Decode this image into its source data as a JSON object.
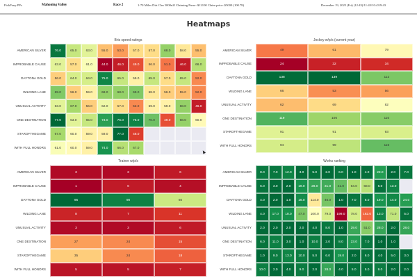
{
  "header": {
    "app_name": "PickPony PPs",
    "track": "Mahoning Valley",
    "race": "Race 2",
    "race_info": "1-70 Miles Dirt Clm 5000n2l Claiming Purse: $12100 Claim price: $5000 (100.78)",
    "date_times": "December 19, 2025 (Fri) (12:43)/11:43/10:43/9:43"
  },
  "page_title": "Heatmaps",
  "chart_data": [
    {
      "id": "speed",
      "type": "heatmap",
      "title": "Bris speed ratings",
      "colormap": "RdYlGn",
      "higher_is_better": true,
      "value_format": "decimal1",
      "rows": [
        "AMERICAN SILVER",
        "IMPROBABLE CAUSE",
        "DAYTONA GOLD",
        "WILDING LANE",
        "UNUSUAL ACTIVITY",
        "ONE DESTINATION",
        "STAROFTHEGAME",
        "WITH FULL HONORS"
      ],
      "columns": 10,
      "values": [
        [
          76,
          65,
          63,
          55,
          53,
          57,
          57,
          68,
          58,
          55
        ],
        [
          63,
          57,
          61,
          44,
          46,
          49,
          56,
          51,
          46,
          66
        ],
        [
          56,
          64,
          64,
          75,
          65,
          59,
          65,
          57,
          65,
          52
        ],
        [
          69,
          56,
          59,
          68,
          68,
          69,
          58,
          56,
          55,
          52
        ],
        [
          63,
          67,
          56,
          62,
          57,
          52,
          59,
          59,
          68,
          46
        ],
        [
          77,
          63,
          65,
          73,
          76,
          75,
          70,
          49,
          68,
          60
        ],
        [
          67,
          60,
          59,
          59,
          77,
          48,
          null,
          null,
          null,
          null
        ],
        [
          61,
          60,
          59,
          74,
          66,
          67,
          null,
          null,
          null,
          null
        ]
      ],
      "vmin": 44,
      "vmax": 77
    },
    {
      "id": "jockey",
      "type": "heatmap",
      "title": "Jockey w/p/s (current year)",
      "colormap": "RdYlGn",
      "higher_is_better": true,
      "value_format": "int",
      "rows": [
        "AMERICAN SILVER",
        "IMPROBABLE CAUSE",
        "DAYTONA GOLD",
        "WILDING LANE",
        "UNUSUAL ACTIVITY",
        "ONE DESTINATION",
        "STAROFTHEGAME",
        "WITH FULL HONORS"
      ],
      "columns": 3,
      "values": [
        [
          49,
          61,
          79
        ],
        [
          24,
          32,
          34
        ],
        [
          138,
          139,
          112
        ],
        [
          66,
          53,
          56
        ],
        [
          62,
          69,
          82
        ],
        [
          119,
          106,
          110
        ],
        [
          91,
          91,
          93
        ],
        [
          94,
          99,
          116
        ]
      ],
      "vmin": 24,
      "vmax": 139
    },
    {
      "id": "trainer",
      "type": "heatmap",
      "title": "Trainer w/p/s",
      "colormap": "RdYlGn",
      "higher_is_better": true,
      "value_format": "int",
      "rows": [
        "AMERICAN SILVER",
        "IMPROBABLE CAUSE",
        "DAYTONA GOLD",
        "WILDING LANE",
        "UNUSUAL ACTIVITY",
        "ONE DESTINATION",
        "STAROFTHEGAME",
        "WITH FULL HONORS"
      ],
      "columns": 3,
      "values": [
        [
          3,
          3,
          6
        ],
        [
          1,
          6,
          4
        ],
        [
          95,
          90,
          60
        ],
        [
          8,
          7,
          11
        ],
        [
          3,
          3,
          6
        ],
        [
          27,
          24,
          15
        ],
        [
          35,
          24,
          18
        ],
        [
          5,
          5,
          7
        ]
      ],
      "vmin": 1,
      "vmax": 95
    },
    {
      "id": "works",
      "type": "heatmap",
      "title": "Works ranking",
      "colormap": "RdYlGn_r",
      "higher_is_better": false,
      "value_format": "decimal1",
      "rows": [
        "AMERICAN SILVER",
        "IMPROBABLE CAUSE",
        "DAYTONA GOLD",
        "WILDING LANE",
        "UNUSUAL ACTIVITY",
        "ONE DESTINATION",
        "STAROFTHEGAME",
        "WITH FULL HONORS"
      ],
      "columns": 12,
      "values": [
        [
          8,
          7,
          12,
          3,
          5,
          2,
          6,
          1,
          4,
          23,
          2,
          7
        ],
        [
          6,
          3,
          2,
          19,
          28,
          31,
          41,
          64,
          68,
          5,
          13,
          null
        ],
        [
          4,
          2,
          1,
          16,
          114,
          46,
          1,
          7,
          8,
          19,
          14,
          24
        ],
        [
          4,
          17,
          18,
          47,
          100,
          79,
          199,
          78,
          162,
          13,
          71,
          5
        ],
        [
          2,
          2,
          2,
          2,
          4,
          8,
          1,
          29,
          51,
          28,
          2,
          28
        ],
        [
          6,
          11,
          3,
          1,
          10,
          2,
          8,
          23,
          7,
          1,
          1,
          null
        ],
        [
          1,
          9,
          13,
          10,
          5,
          6,
          19,
          2,
          6,
          4,
          5,
          3
        ],
        [
          10,
          2,
          4,
          9,
          2,
          28,
          4,
          5,
          5,
          9,
          2,
          2
        ]
      ],
      "vmin": 1,
      "vmax": 199
    }
  ]
}
